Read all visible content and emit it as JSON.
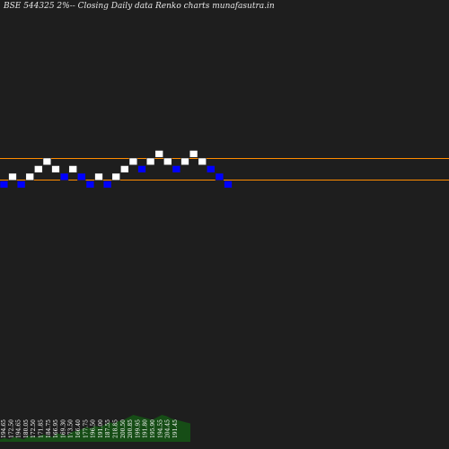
{
  "title": "BSE 544325 2%-- Closing Daily data Renko charts munafasutra.in",
  "colors": {
    "background": "#1e1e1e",
    "up_brick": "#ffffff",
    "down_brick": "#0000ff",
    "brick_border": "#222222",
    "resistance_line": "#ff8c00",
    "volume": "#164d16",
    "volume_label": "#ffffff"
  },
  "chart_data": {
    "type": "renko",
    "box_size_label": "2%",
    "levels": [
      {
        "name": "upper-line",
        "value": 177.8
      },
      {
        "name": "lower-line",
        "value": 171.0
      }
    ],
    "bricks": [
      {
        "dir": "down",
        "level": 172.0
      },
      {
        "dir": "up",
        "level": 174.0
      },
      {
        "dir": "down",
        "level": 172.0
      },
      {
        "dir": "up",
        "level": 174.0
      },
      {
        "dir": "up",
        "level": 176.0
      },
      {
        "dir": "up",
        "level": 178.0
      },
      {
        "dir": "up",
        "level": 176.0
      },
      {
        "dir": "down",
        "level": 174.0
      },
      {
        "dir": "up",
        "level": 176.0
      },
      {
        "dir": "down",
        "level": 174.0
      },
      {
        "dir": "down",
        "level": 172.0
      },
      {
        "dir": "up",
        "level": 174.0
      },
      {
        "dir": "down",
        "level": 172.0
      },
      {
        "dir": "up",
        "level": 174.0
      },
      {
        "dir": "up",
        "level": 176.0
      },
      {
        "dir": "up",
        "level": 178.0
      },
      {
        "dir": "down",
        "level": 176.0
      },
      {
        "dir": "up",
        "level": 178.0
      },
      {
        "dir": "up",
        "level": 180.0
      },
      {
        "dir": "up",
        "level": 178.0
      },
      {
        "dir": "down",
        "level": 176.0
      },
      {
        "dir": "up",
        "level": 178.0
      },
      {
        "dir": "up",
        "level": 180.0
      },
      {
        "dir": "up",
        "level": 178.0
      },
      {
        "dir": "down",
        "level": 176.0
      },
      {
        "dir": "down",
        "level": 174.0
      },
      {
        "dir": "down",
        "level": 172.0
      }
    ],
    "price_labels": [
      "194.65",
      "172.50",
      "194.65",
      "180.05",
      "172.50",
      "171.85",
      "184.75",
      "166.95",
      "169.30",
      "173.50",
      "166.40",
      "177.75",
      "196.50",
      "191.00",
      "187.55",
      "218.85",
      "200.50",
      "200.85",
      "199.95",
      "191.80",
      "195.90",
      "194.55",
      "204.45",
      "191.45"
    ],
    "volume": [
      2,
      3,
      2,
      4,
      3,
      2,
      5,
      4,
      4,
      6,
      5,
      4,
      7,
      6,
      5,
      8,
      9,
      10,
      12,
      11,
      13,
      12,
      14,
      16,
      15,
      17,
      18,
      20,
      22,
      21,
      20,
      19,
      18,
      20,
      22,
      21,
      19,
      18,
      17,
      16,
      15
    ]
  }
}
